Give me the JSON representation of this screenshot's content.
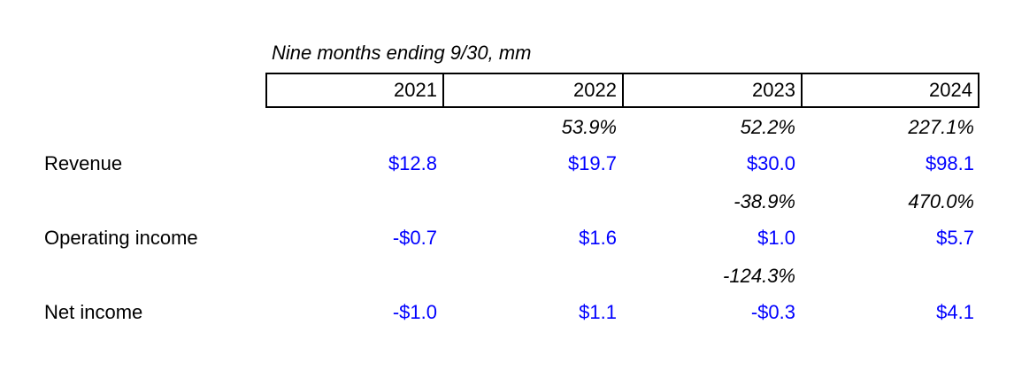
{
  "table": {
    "caption": "Nine months ending 9/30, mm",
    "columns": [
      "2021",
      "2022",
      "2023",
      "2024"
    ],
    "rows": [
      {
        "growth": [
          null,
          "53.9%",
          "52.2%",
          "227.1%"
        ],
        "label": "Revenue",
        "values": [
          "$12.8",
          "$19.7",
          "$30.0",
          "$98.1"
        ]
      },
      {
        "growth": [
          null,
          null,
          "-38.9%",
          "470.0%"
        ],
        "label": "Operating income",
        "values": [
          "-$0.7",
          "$1.6",
          "$1.0",
          "$5.7"
        ]
      },
      {
        "growth": [
          null,
          null,
          "-124.3%",
          null
        ],
        "label": "Net income",
        "values": [
          "-$1.0",
          "$1.1",
          "-$0.3",
          "$4.1"
        ]
      }
    ]
  }
}
